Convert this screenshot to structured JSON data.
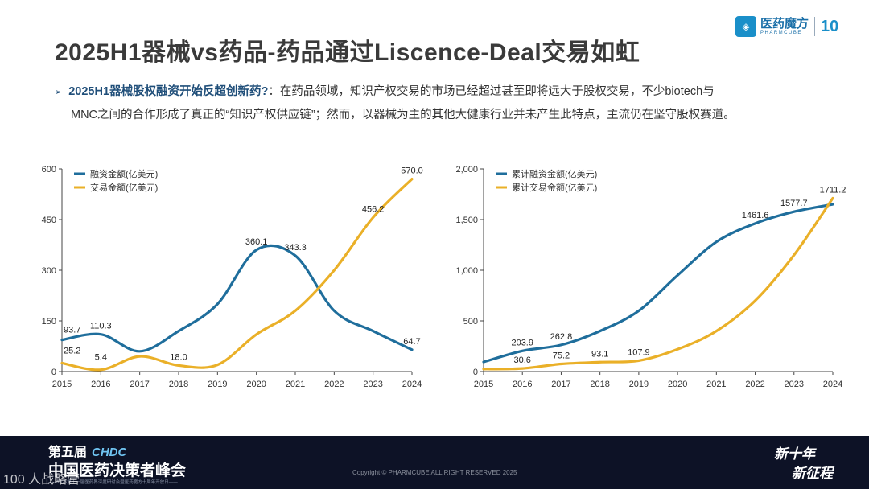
{
  "header": {
    "title": "2025H1器械vs药品-药品通过Liscence-Deal交易如虹",
    "logo_cn": "医药魔方",
    "logo_en": "PHARMCUBE",
    "logo_ten": "10"
  },
  "bullet": {
    "marker": "➢",
    "lead": "2025H1器械股权融资开始反超创新药?",
    "text1": "：在药品领域，知识产权交易的市场已经超过甚至即将远大于股权交易，不少biotech与",
    "text2": "MNC之间的合作形成了真正的“知识产权供应链”；然而，以器械为主的其他大健康行业并未产生此特点，主流仍在坚守股权赛道。"
  },
  "footer": {
    "edition": "第五届",
    "chdc": "CHDC",
    "summit": "中国医药决策者峰会",
    "sub": "——2025第十一届医药界深度研讨会暨医药魔方十周年开放日——",
    "copyright": "Copyright © PHARMCUBE ALL RIGHT RESERVED 2025",
    "slogan1": "新十年",
    "slogan2": "新征程",
    "watermark": "100 人战略营"
  },
  "colors": {
    "blue": "#1f6e9c",
    "gold": "#eab028",
    "title": "#3a3a3a",
    "accent": "#1f4e79"
  },
  "chart_data": [
    {
      "type": "line",
      "x": [
        2015,
        2016,
        2017,
        2018,
        2019,
        2020,
        2021,
        2022,
        2023,
        2024
      ],
      "ylim": [
        0,
        600
      ],
      "yticks": [
        0,
        150,
        300,
        450,
        600
      ],
      "ytick_labels": [
        "0",
        "150",
        "300",
        "450",
        "600"
      ],
      "series": [
        {
          "name": "融资金额(亿美元)",
          "color": "#1f6e9c",
          "values": [
            93.7,
            110.3,
            60,
            120,
            200,
            360.1,
            343.3,
            180,
            120,
            64.7
          ],
          "labels": [
            "93.7",
            "110.3",
            "",
            "",
            "",
            "360.1",
            "343.3",
            "",
            "",
            "64.7"
          ]
        },
        {
          "name": "交易金额(亿美元)",
          "color": "#eab028",
          "values": [
            25.2,
            5.4,
            45,
            18.0,
            20,
            110,
            180,
            300,
            456.2,
            570.0
          ],
          "labels": [
            "25.2",
            "5.4",
            "",
            "18.0",
            "",
            "",
            "",
            "",
            "456.2",
            "570.0"
          ]
        }
      ]
    },
    {
      "type": "line",
      "x": [
        2015,
        2016,
        2017,
        2018,
        2019,
        2020,
        2021,
        2022,
        2023,
        2024
      ],
      "ylim": [
        0,
        2000
      ],
      "yticks": [
        0,
        500,
        1000,
        1500,
        2000
      ],
      "ytick_labels": [
        "0",
        "500",
        "1,000",
        "1,500",
        "2,000"
      ],
      "series": [
        {
          "name": "累计融资金额(亿美元)",
          "color": "#1f6e9c",
          "values": [
            95,
            203.9,
            262.8,
            400,
            600,
            950,
            1280,
            1461.6,
            1577.7,
            1650
          ],
          "labels": [
            "",
            "203.9",
            "262.8",
            "",
            "",
            "",
            "",
            "1461.6",
            "1577.7",
            ""
          ]
        },
        {
          "name": "累计交易金额(亿美元)",
          "color": "#eab028",
          "values": [
            25,
            30.6,
            75.2,
            93.1,
            107.9,
            220,
            400,
            700,
            1150,
            1711.2
          ],
          "labels": [
            "",
            "30.6",
            "75.2",
            "93.1",
            "107.9",
            "",
            "",
            "",
            "",
            "1711.2"
          ]
        }
      ]
    }
  ]
}
